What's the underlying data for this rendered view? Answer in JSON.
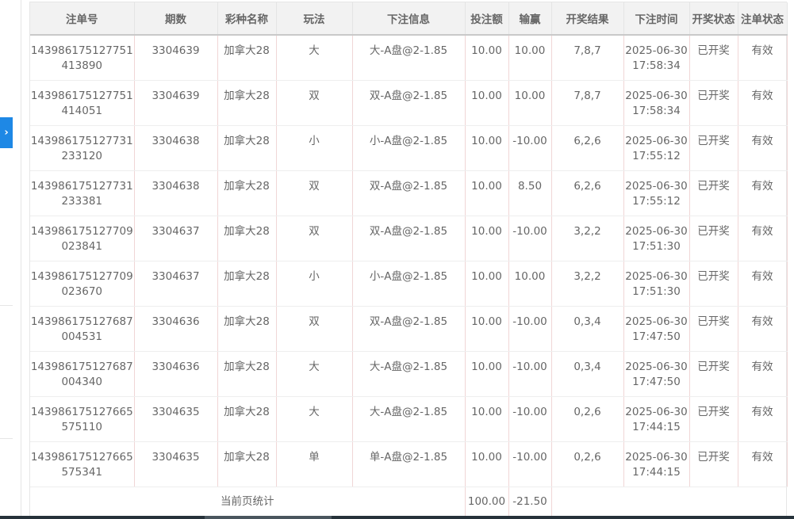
{
  "sidebar": {
    "expand_icon": "chevron-right-icon",
    "expand_glyph": "›"
  },
  "table": {
    "headers": [
      "注单号",
      "期数",
      "彩种名称",
      "玩法",
      "下注信息",
      "投注额",
      "输赢",
      "开奖结果",
      "下注时间",
      "开奖状态",
      "注单状态"
    ],
    "rows": [
      [
        "143986175127751413890",
        "3304639",
        "加拿大28",
        "大",
        "大-A盘@2-1.85",
        "10.00",
        "10.00",
        "7,8,7",
        "2025-06-30 17:58:34",
        "已开奖",
        "有效"
      ],
      [
        "143986175127751414051",
        "3304639",
        "加拿大28",
        "双",
        "双-A盘@2-1.85",
        "10.00",
        "10.00",
        "7,8,7",
        "2025-06-30 17:58:34",
        "已开奖",
        "有效"
      ],
      [
        "143986175127731233120",
        "3304638",
        "加拿大28",
        "小",
        "小-A盘@2-1.85",
        "10.00",
        "-10.00",
        "6,2,6",
        "2025-06-30 17:55:12",
        "已开奖",
        "有效"
      ],
      [
        "143986175127731233381",
        "3304638",
        "加拿大28",
        "双",
        "双-A盘@2-1.85",
        "10.00",
        "8.50",
        "6,2,6",
        "2025-06-30 17:55:12",
        "已开奖",
        "有效"
      ],
      [
        "143986175127709023841",
        "3304637",
        "加拿大28",
        "双",
        "双-A盘@2-1.85",
        "10.00",
        "-10.00",
        "3,2,2",
        "2025-06-30 17:51:30",
        "已开奖",
        "有效"
      ],
      [
        "143986175127709023670",
        "3304637",
        "加拿大28",
        "小",
        "小-A盘@2-1.85",
        "10.00",
        "10.00",
        "3,2,2",
        "2025-06-30 17:51:30",
        "已开奖",
        "有效"
      ],
      [
        "143986175127687004531",
        "3304636",
        "加拿大28",
        "双",
        "双-A盘@2-1.85",
        "10.00",
        "-10.00",
        "0,3,4",
        "2025-06-30 17:47:50",
        "已开奖",
        "有效"
      ],
      [
        "143986175127687004340",
        "3304636",
        "加拿大28",
        "大",
        "大-A盘@2-1.85",
        "10.00",
        "-10.00",
        "0,3,4",
        "2025-06-30 17:47:50",
        "已开奖",
        "有效"
      ],
      [
        "143986175127665575110",
        "3304635",
        "加拿大28",
        "大",
        "大-A盘@2-1.85",
        "10.00",
        "-10.00",
        "0,2,6",
        "2025-06-30 17:44:15",
        "已开奖",
        "有效"
      ],
      [
        "143986175127665575341",
        "3304635",
        "加拿大28",
        "单",
        "单-A盘@2-1.85",
        "10.00",
        "-10.00",
        "0,2,6",
        "2025-06-30 17:44:15",
        "已开奖",
        "有效"
      ]
    ],
    "summary": {
      "label": "当前页统计",
      "amount": "100.00",
      "win_loss": "-21.50"
    }
  }
}
